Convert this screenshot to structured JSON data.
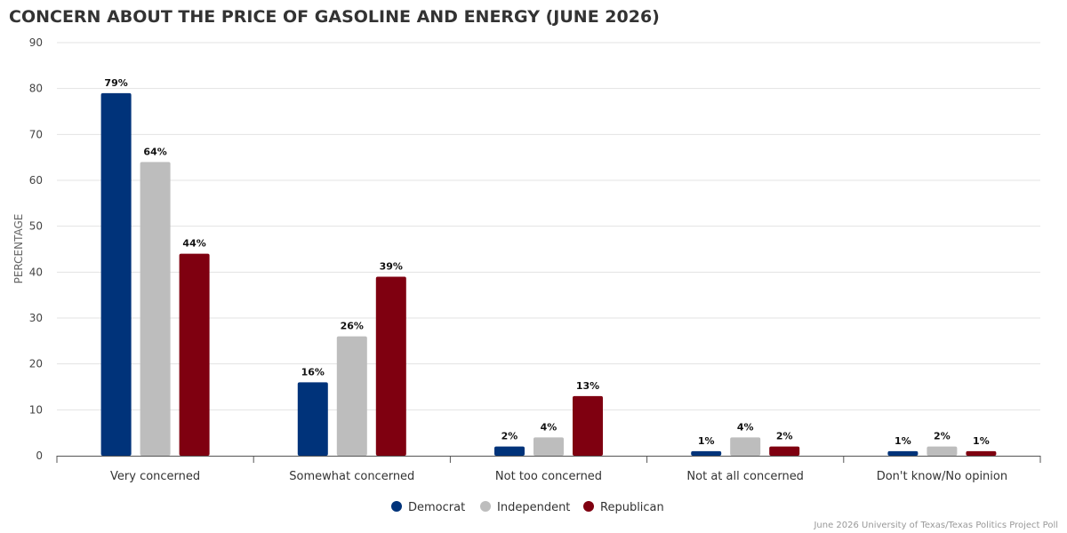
{
  "chart_data": {
    "type": "bar",
    "title": "CONCERN ABOUT THE PRICE OF GASOLINE AND ENERGY (JUNE 2026)",
    "ylabel": "PERCENTAGE",
    "xlabel": "",
    "ylim": [
      0,
      90
    ],
    "yticks": [
      0,
      10,
      20,
      30,
      40,
      50,
      60,
      70,
      80,
      90
    ],
    "grid": true,
    "legend_position": "bottom-center",
    "categories": [
      "Very concerned",
      "Somewhat concerned",
      "Not too concerned",
      "Not at all concerned",
      "Don't know/No opinion"
    ],
    "series": [
      {
        "name": "Democrat",
        "color": "#00337a",
        "values": [
          79,
          16,
          2,
          1,
          1
        ],
        "labels": [
          "79%",
          "16%",
          "2%",
          "1%",
          "1%"
        ]
      },
      {
        "name": "Independent",
        "color": "#bdbdbd",
        "values": [
          64,
          26,
          4,
          4,
          2
        ],
        "labels": [
          "64%",
          "26%",
          "4%",
          "4%",
          "2%"
        ]
      },
      {
        "name": "Republican",
        "color": "#7f0010",
        "values": [
          44,
          39,
          13,
          2,
          1
        ],
        "labels": [
          "44%",
          "39%",
          "13%",
          "2%",
          "1%"
        ]
      }
    ],
    "source": "June 2026 University of Texas/Texas Politics Project Poll"
  }
}
